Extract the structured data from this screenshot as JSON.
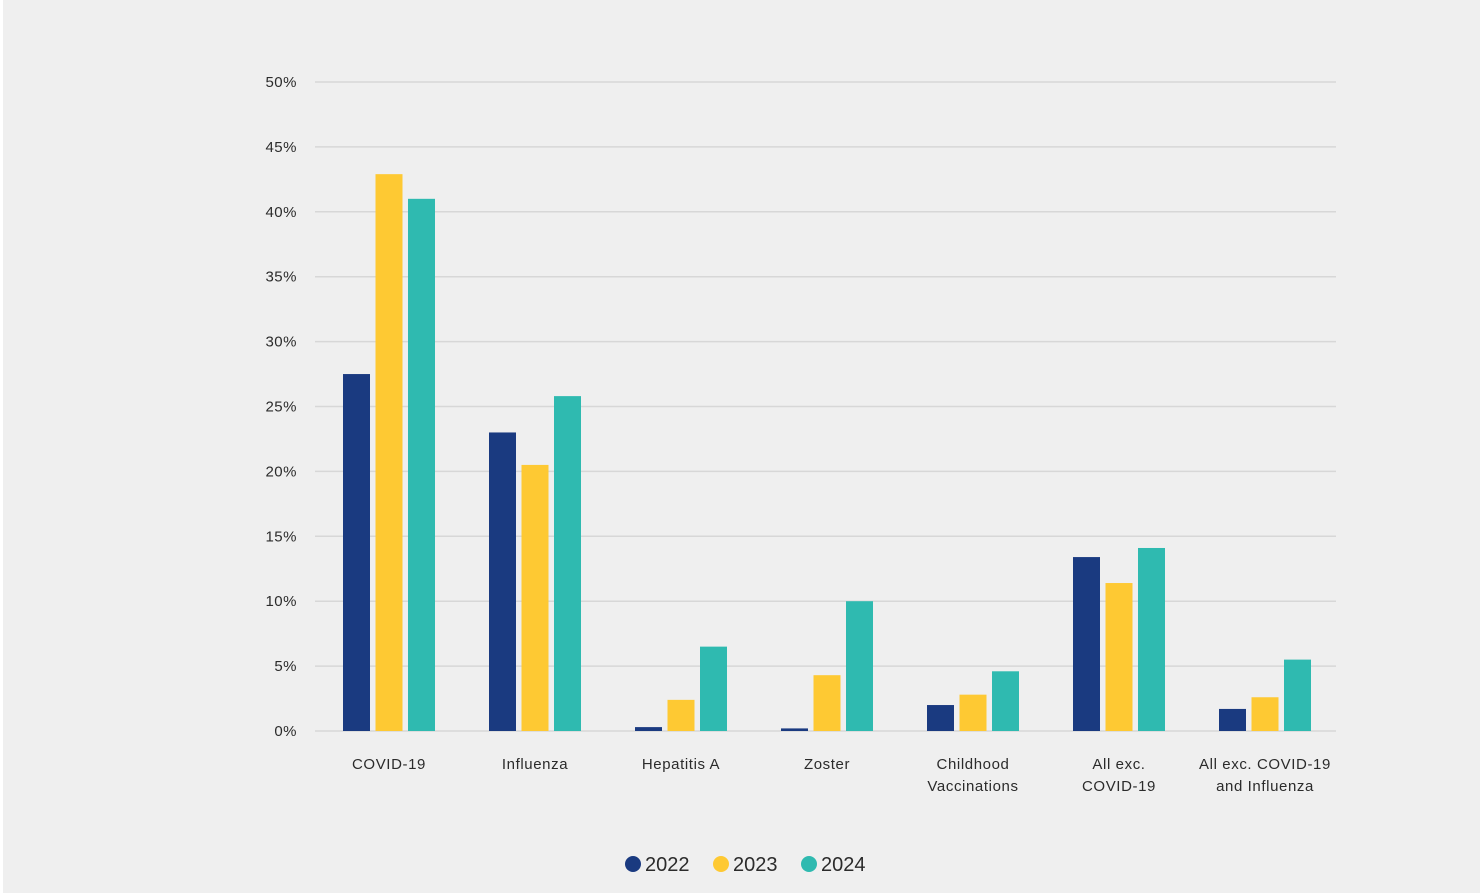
{
  "chart_data": {
    "type": "bar",
    "categories": [
      [
        "COVID-19"
      ],
      [
        "Influenza"
      ],
      [
        "Hepatitis A"
      ],
      [
        "Zoster"
      ],
      [
        "Childhood",
        "Vaccinations"
      ],
      [
        "All exc.",
        "COVID-19"
      ],
      [
        "All exc. COVID-19",
        "and Influenza"
      ]
    ],
    "series": [
      {
        "name": "2022",
        "color": "#1a3a80",
        "values": [
          27.5,
          23.0,
          0.3,
          0.2,
          2.0,
          13.4,
          1.7
        ]
      },
      {
        "name": "2023",
        "color": "#fec933",
        "values": [
          42.9,
          20.5,
          2.4,
          4.3,
          2.8,
          11.4,
          2.6
        ]
      },
      {
        "name": "2024",
        "color": "#2fbab0",
        "values": [
          41.0,
          25.8,
          6.5,
          10.0,
          4.6,
          14.1,
          5.5
        ]
      }
    ],
    "y_ticks": [
      "0%",
      "5%",
      "10%",
      "15%",
      "20%",
      "25%",
      "30%",
      "35%",
      "40%",
      "45%",
      "50%"
    ],
    "ylim": [
      0,
      50
    ],
    "grid": true,
    "legend_position": "bottom-center",
    "title": "",
    "xlabel": "",
    "ylabel": ""
  }
}
